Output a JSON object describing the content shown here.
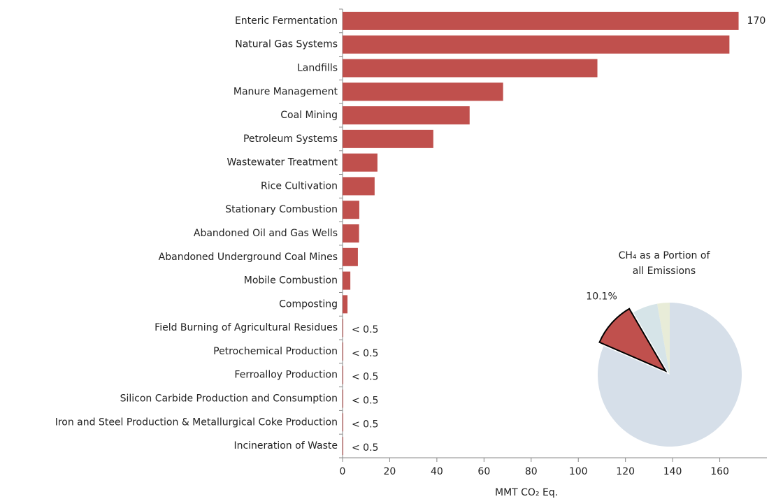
{
  "chart_data": [
    {
      "type": "hbar",
      "x_label": "MMT CO₂ Eq.",
      "categories": [
        "Enteric Fermentation",
        "Natural Gas Systems",
        "Landfills",
        "Manure Management",
        "Coal Mining",
        "Petroleum Systems",
        "Wastewater Treatment",
        "Rice Cultivation",
        "Stationary Combustion",
        "Abandoned Oil and Gas Wells",
        "Abandoned Underground Coal Mines",
        "Mobile Combustion",
        "Composting",
        "Field Burning of Agricultural Residues",
        "Petrochemical Production",
        "Ferroalloy Production",
        "Silicon Carbide Production and Consumption",
        "Iron and Steel Production & Metallurgical Coke Production",
        "Incineration of Waste"
      ],
      "values": [
        168,
        164.1,
        108.1,
        68.1,
        53.9,
        38.5,
        14.8,
        13.6,
        7.1,
        7.0,
        6.5,
        3.3,
        2.1,
        0.3,
        0.3,
        0.3,
        0.3,
        0.3,
        0.3
      ],
      "value_labels": [
        "170",
        null,
        null,
        null,
        null,
        null,
        null,
        null,
        null,
        null,
        null,
        null,
        null,
        "< 0.5",
        "< 0.5",
        "< 0.5",
        "< 0.5",
        "< 0.5",
        "< 0.5"
      ],
      "color": "#c0504d",
      "xlim": [
        0,
        180
      ],
      "xticks": [
        0,
        20,
        40,
        60,
        80,
        100,
        120,
        140,
        160
      ]
    },
    {
      "type": "pie",
      "title": "CH₄ as a Portion of all Emissions",
      "categories": [
        null,
        null,
        "CH₄",
        null
      ],
      "values": [
        2.8,
        5.6,
        10.1,
        81.5
      ],
      "value_labels": [
        null,
        null,
        "10.1%",
        null
      ],
      "colors": [
        "#e8ecd8",
        "#d6e4e8",
        "#c0504d",
        "#d6dfe9"
      ],
      "exploded": [
        false,
        false,
        true,
        false
      ]
    }
  ]
}
